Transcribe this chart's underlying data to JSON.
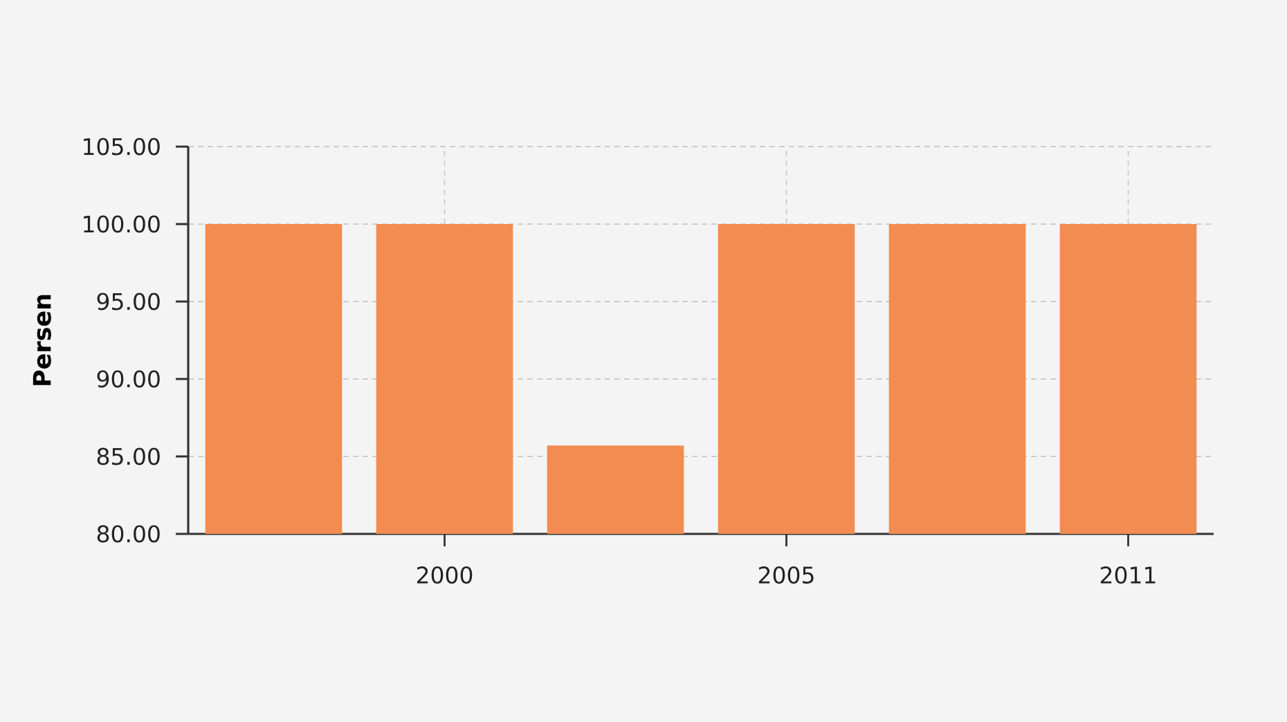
{
  "chart_data": {
    "type": "bar",
    "ylabel": "Persen",
    "categories": [
      null,
      "2000",
      null,
      "2005",
      null,
      "2011"
    ],
    "values": [
      100,
      100,
      85.7,
      100,
      100,
      100
    ],
    "color": "#f28c50",
    "ylim": [
      80,
      105
    ],
    "yticks": [
      {
        "value": 80,
        "label": "80.00"
      },
      {
        "value": 85,
        "label": "85.00"
      },
      {
        "value": 90,
        "label": "90.00"
      },
      {
        "value": 95,
        "label": "95.00"
      },
      {
        "value": 100,
        "label": "100.00"
      },
      {
        "value": 105,
        "label": "105.00"
      }
    ],
    "grid": true
  }
}
